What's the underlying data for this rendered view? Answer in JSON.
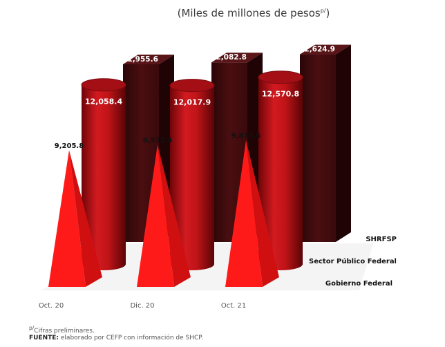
{
  "chart_data": {
    "type": "bar",
    "subtitle_main": "(Miles de millones de pesos",
    "subtitle_sup": "p/",
    "subtitle_end": ")",
    "categories": [
      "Oct. 20",
      "Dic. 20",
      "Oct. 21"
    ],
    "series": [
      {
        "name": "SHRFSP",
        "shape": "box",
        "values": [
          11955.6,
          12082.8,
          12624.9
        ],
        "labels": [
          "11,955.6",
          "12,082.8",
          "12,624.9"
        ]
      },
      {
        "name": "Sector Público Federal",
        "shape": "cylinder",
        "values": [
          12058.4,
          12017.9,
          12570.8
        ],
        "labels": [
          "12,058.4",
          "12,017.9",
          "12,570.8"
        ]
      },
      {
        "name": "Gobierno Federal",
        "shape": "cone",
        "values": [
          9205.8,
          9572.4,
          9875.5
        ],
        "labels": [
          "9,205.8",
          "9,572.4",
          "9,875.5"
        ]
      }
    ],
    "colors": {
      "box_front": "#3d0a0c",
      "box_top": "#5a1518",
      "box_side": "#200405",
      "cylinder": "#c4141a",
      "cone": "#ff1a1a",
      "cone_dark": "#d01010"
    }
  },
  "footnote_sup": "p/",
  "footnote": "Cifras preliminares.",
  "source_label": "FUENTE:",
  "source_text": " elaborado por CEFP con información de SHCP."
}
